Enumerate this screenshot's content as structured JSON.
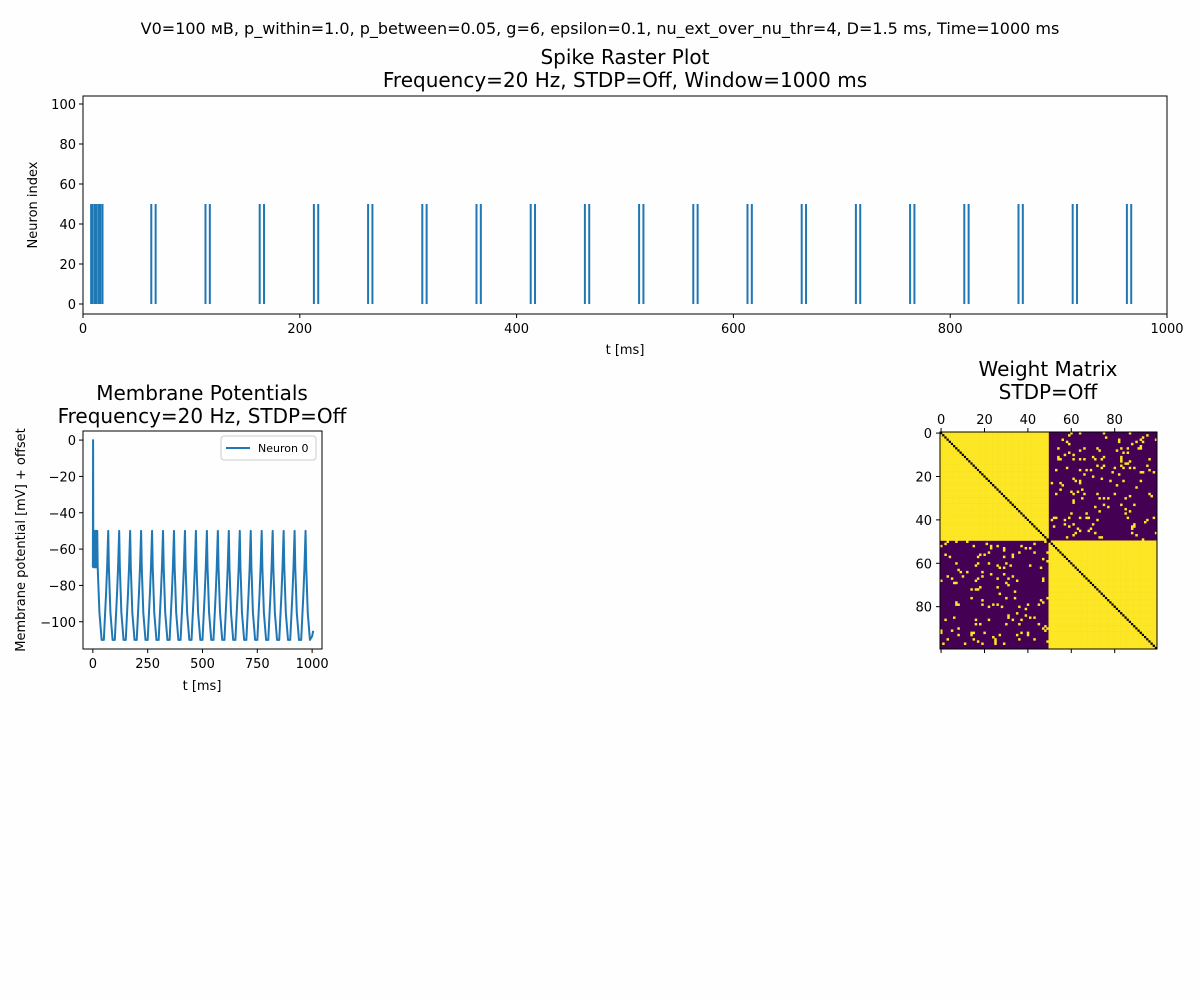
{
  "suptitle": "V0=100 мВ, p_within=1.0, p_between=0.05, g=6, epsilon=0.1, nu_ext_over_nu_thr=4, D=1.5 ms, Time=1000 ms",
  "colors": {
    "series": "#1f77b4",
    "heat_low": "#440154",
    "heat_high": "#fde725",
    "background": "#fefefe"
  },
  "chart_data": [
    {
      "type": "scatter",
      "marker": "vertical-line",
      "title": "Spike Raster Plot",
      "subtitle": "Frequency=20 Hz, STDP=Off, Window=1000 ms",
      "xlabel": "t [ms]",
      "ylabel": "Neuron index",
      "xlim": [
        0,
        1000
      ],
      "ylim": [
        -5,
        104
      ],
      "xticks": [
        0,
        200,
        400,
        600,
        800,
        1000
      ],
      "yticks": [
        0,
        20,
        40,
        60,
        80,
        100
      ],
      "grid": false,
      "neuron_range": [
        0,
        50
      ],
      "initial_spike_times": [
        7.5,
        9,
        11,
        12.5,
        14.5,
        16,
        18
      ],
      "spike_pairs": [
        [
          63,
          67
        ],
        [
          113,
          117
        ],
        [
          163,
          167
        ],
        [
          213,
          217
        ],
        [
          263,
          267
        ],
        [
          313,
          317
        ],
        [
          363,
          367
        ],
        [
          413,
          417
        ],
        [
          463,
          467
        ],
        [
          513,
          517
        ],
        [
          563,
          567
        ],
        [
          613,
          617
        ],
        [
          663,
          667
        ],
        [
          713,
          717
        ],
        [
          763,
          767
        ],
        [
          813,
          817
        ],
        [
          863,
          867
        ],
        [
          913,
          917
        ],
        [
          963,
          967
        ]
      ]
    },
    {
      "type": "line",
      "title": "Membrane Potentials",
      "subtitle": "Frequency=20 Hz, STDP=Off",
      "xlabel": "t [ms]",
      "ylabel": "Membrane potential [mV] + offset",
      "xlim": [
        -45,
        1045
      ],
      "ylim": [
        -115,
        5
      ],
      "xticks": [
        0,
        250,
        500,
        750,
        1000
      ],
      "yticks": [
        0,
        -20,
        -40,
        -60,
        -80,
        -100
      ],
      "grid": false,
      "legend": "top-right",
      "series": [
        {
          "name": "Neuron 0",
          "initial_points": [
            [
              0,
              -70
            ],
            [
              1,
              0
            ],
            [
              2,
              -70
            ],
            [
              4,
              -50
            ],
            [
              5,
              -70
            ],
            [
              6,
              -50
            ],
            [
              7,
              -70
            ],
            [
              8,
              -50
            ],
            [
              9,
              -70
            ],
            [
              10,
              -50
            ],
            [
              11,
              -70
            ],
            [
              12,
              -50
            ],
            [
              13,
              -70
            ],
            [
              14,
              -50
            ],
            [
              15,
              -70
            ],
            [
              16,
              -50
            ],
            [
              17,
              -70
            ],
            [
              18,
              -50
            ],
            [
              19,
              -70
            ],
            [
              20,
              -50
            ],
            [
              22,
              -70
            ],
            [
              30,
              -95
            ],
            [
              40,
              -110
            ]
          ],
          "cycle_period_ms": 50,
          "cycle_count": 19,
          "peak_value": -50,
          "minor_level": -70,
          "trough_value": -110,
          "final_points": [
            [
              1000,
              -108
            ],
            [
              1005,
              -105
            ]
          ]
        }
      ]
    },
    {
      "type": "heatmap",
      "title": "Weight Matrix",
      "subtitle": "STDP=Off",
      "size": 100,
      "xticks": [
        0,
        20,
        40,
        60,
        80
      ],
      "yticks": [
        0,
        20,
        40,
        60,
        80
      ],
      "colormap": "viridis",
      "group_size": 50,
      "p_within": 1.0,
      "p_between": 0.05,
      "diagonal_value": 0,
      "value_range": [
        0,
        1
      ]
    }
  ]
}
